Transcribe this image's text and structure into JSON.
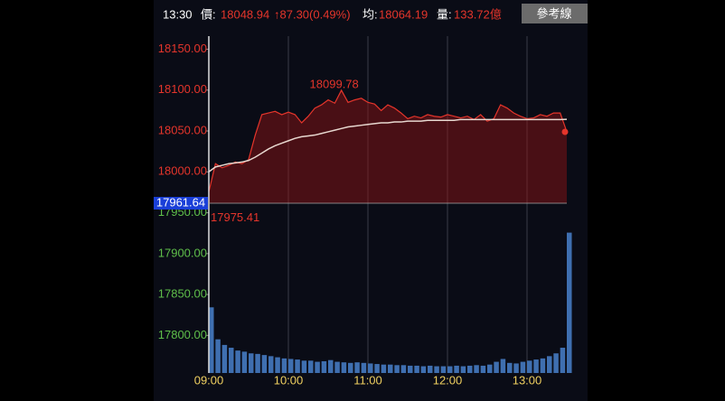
{
  "header": {
    "time": "13:30",
    "price_label": "價:",
    "price": 18048.94,
    "change": "↑87.30(0.49%)",
    "avg_label": "均:",
    "avg": 18064.19,
    "volume_label": "量:",
    "volume": "133.72億",
    "button": "參考線"
  },
  "chart_data": {
    "type": "line",
    "x": [
      "09:00",
      "09:05",
      "09:10",
      "09:15",
      "09:20",
      "09:25",
      "09:30",
      "09:35",
      "09:40",
      "09:45",
      "09:50",
      "09:55",
      "10:00",
      "10:05",
      "10:10",
      "10:15",
      "10:20",
      "10:25",
      "10:30",
      "10:35",
      "10:40",
      "10:45",
      "10:50",
      "10:55",
      "11:00",
      "11:05",
      "11:10",
      "11:15",
      "11:20",
      "11:25",
      "11:30",
      "11:35",
      "11:40",
      "11:45",
      "11:50",
      "11:55",
      "12:00",
      "12:05",
      "12:10",
      "12:15",
      "12:20",
      "12:25",
      "12:30",
      "12:35",
      "12:40",
      "12:45",
      "12:50",
      "12:55",
      "13:00",
      "13:05",
      "13:10",
      "13:15",
      "13:20",
      "13:25",
      "13:30"
    ],
    "xlim": [
      "09:00",
      "13:30"
    ],
    "xticks": [
      "09:00",
      "10:00",
      "11:00",
      "12:00",
      "13:00"
    ],
    "series": [
      {
        "name": "price",
        "color": "#e5352b",
        "values": [
          17975.41,
          18010,
          18005,
          18008,
          18012,
          18010,
          18015,
          18045,
          18070,
          18072,
          18074,
          18070,
          18073,
          18070,
          18060,
          18068,
          18078,
          18082,
          18088,
          18084,
          18099.78,
          18085,
          18088,
          18090,
          18085,
          18083,
          18075,
          18082,
          18078,
          18072,
          18065,
          18068,
          18066,
          18070,
          18068,
          18067,
          18070,
          18068,
          18066,
          18068,
          18064,
          18070,
          18062,
          18065,
          18082,
          18078,
          18072,
          18068,
          18065,
          18066,
          18070,
          18068,
          18072,
          18072,
          18048.94
        ]
      },
      {
        "name": "average",
        "color": "#e8d8d0",
        "values": [
          18000,
          18006,
          18008,
          18010,
          18011,
          18012,
          18014,
          18018,
          18023,
          18028,
          18032,
          18035,
          18038,
          18041,
          18043,
          18044,
          18045,
          18047,
          18049,
          18051,
          18053,
          18055,
          18056,
          18057,
          18058,
          18059,
          18060,
          18060,
          18061,
          18061,
          18062,
          18062,
          18062,
          18063,
          18063,
          18063,
          18063,
          18063,
          18064,
          18064,
          18064,
          18064,
          18064,
          18064,
          18064,
          18064,
          18064,
          18064,
          18064,
          18064,
          18064,
          18064,
          18064,
          18064,
          18064.19
        ]
      },
      {
        "name": "volume",
        "color": "#3f6fb0",
        "axis": "y2",
        "values": [
          11.7,
          6,
          5,
          4.5,
          4,
          3.8,
          3.5,
          3.4,
          3.2,
          3,
          2.8,
          2.6,
          2.5,
          2.4,
          2.2,
          2.2,
          2.0,
          2.1,
          2.3,
          2.0,
          1.9,
          1.8,
          1.9,
          1.8,
          1.7,
          1.6,
          1.5,
          1.5,
          1.4,
          1.4,
          1.3,
          1.3,
          1.2,
          1.3,
          1.2,
          1.2,
          1.2,
          1.3,
          1.2,
          1.3,
          1.4,
          1.3,
          1.5,
          2.0,
          2.5,
          1.8,
          1.7,
          2.0,
          2.2,
          2.4,
          2.6,
          3.0,
          3.5,
          4.5,
          25
        ]
      }
    ],
    "ylim": [
      17754,
      18166
    ],
    "yticks": [
      {
        "value": 17800,
        "label": "17800.00"
      },
      {
        "value": 17850,
        "label": "17850.00"
      },
      {
        "value": 17900,
        "label": "17900.00"
      },
      {
        "value": 17950,
        "label": "17950.00"
      },
      {
        "value": 18000,
        "label": "18000.00"
      },
      {
        "value": 18050,
        "label": "18050.00"
      },
      {
        "value": 18100,
        "label": "18100.00"
      },
      {
        "value": 18150,
        "label": "18150.00"
      }
    ],
    "y2lim": [
      0,
      60
    ],
    "reference": 17961.64,
    "high": 18099.78,
    "low": 17975.41,
    "up_color": "#e5352b",
    "down_color": "#5fbf4a"
  }
}
